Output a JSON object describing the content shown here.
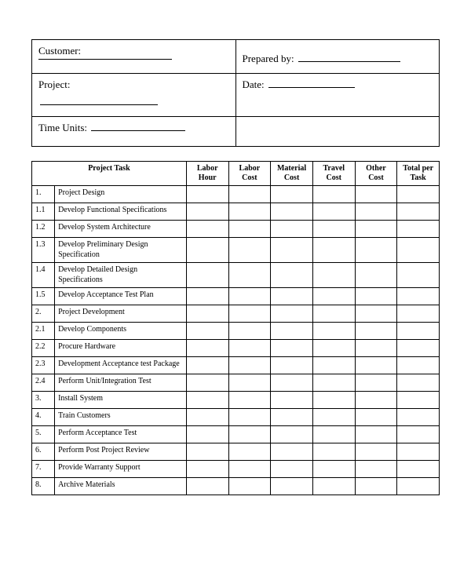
{
  "header": {
    "customer_label": "Customer:",
    "prepared_label": "Prepared by:",
    "project_label": "Project:",
    "date_label": "Date:",
    "time_units_label": "Time Units:"
  },
  "table": {
    "columns": {
      "task": "Project  Task",
      "labor_hour": "Labor Hour",
      "labor_cost": "Labor Cost",
      "material_cost": "Material Cost",
      "travel_cost": "Travel Cost",
      "other_cost": "Other Cost",
      "total": "Total per Task"
    },
    "rows": [
      {
        "num": "1.",
        "task": "Project Design"
      },
      {
        "num": "1.1",
        "task": "Develop Functional Specifications"
      },
      {
        "num": "1.2",
        "task": "Develop System Architecture"
      },
      {
        "num": "1.3",
        "task": "Develop Preliminary Design Specification"
      },
      {
        "num": "1.4",
        "task": "Develop Detailed Design Specifications"
      },
      {
        "num": "1.5",
        "task": "Develop Acceptance Test Plan"
      },
      {
        "num": "2.",
        "task": "Project Development"
      },
      {
        "num": "2.1",
        "task": "Develop Components"
      },
      {
        "num": "2.2",
        "task": "Procure Hardware"
      },
      {
        "num": "2.3",
        "task": "Development Acceptance test Package"
      },
      {
        "num": "2.4",
        "task": "Perform Unit/Integration Test"
      },
      {
        "num": "3.",
        "task": "Install System"
      },
      {
        "num": "4.",
        "task": "Train Customers"
      },
      {
        "num": "5.",
        "task": "Perform Acceptance Test"
      },
      {
        "num": "6.",
        "task": "Perform Post Project Review"
      },
      {
        "num": "7.",
        "task": "Provide Warranty Support"
      },
      {
        "num": "8.",
        "task": "Archive Materials"
      }
    ]
  },
  "style": {
    "border_color": "#000000",
    "background": "#ffffff",
    "font_family": "Times New Roman",
    "header_fontsize": 13,
    "table_fontsize": 10
  }
}
